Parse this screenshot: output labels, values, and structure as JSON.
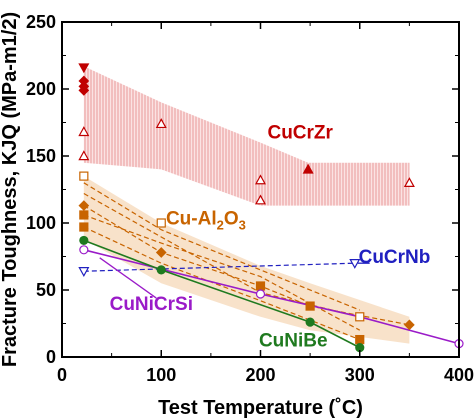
{
  "chart_data": {
    "type": "scatter",
    "xlabel": "Test Temperature (˚C)",
    "ylabel": "Fracture Toughness, KJQ (MPa-m1/2)",
    "xlim": [
      0,
      400
    ],
    "ylim": [
      0,
      250
    ],
    "xticks": [
      "0",
      "100",
      "200",
      "300",
      "400"
    ],
    "yticks": [
      "0",
      "50",
      "100",
      "150",
      "200",
      "250"
    ],
    "grid": false,
    "bands": [
      {
        "series": "CuCrZr",
        "color": "#f2b6b6",
        "pattern": "vertical-hatch",
        "upper": [
          [
            22,
            217
          ],
          [
            100,
            190
          ],
          [
            200,
            160
          ],
          [
            248,
            145
          ],
          [
            350,
            145
          ]
        ],
        "lower": [
          [
            22,
            145
          ],
          [
            100,
            140
          ],
          [
            200,
            113
          ],
          [
            248,
            113
          ],
          [
            350,
            113
          ]
        ]
      },
      {
        "series": "Cu-Al2O3",
        "color": "#f6d8b8",
        "pattern": "solid",
        "upper": [
          [
            22,
            135
          ],
          [
            100,
            100
          ],
          [
            200,
            68
          ],
          [
            250,
            55
          ],
          [
            350,
            30
          ]
        ],
        "lower": [
          [
            22,
            88
          ],
          [
            100,
            55
          ],
          [
            200,
            30
          ],
          [
            250,
            20
          ],
          [
            350,
            10
          ]
        ]
      }
    ],
    "series": [
      {
        "name": "CuCrZr",
        "color": "#c00000",
        "label_pos": [
          240,
          163
        ],
        "points": [
          {
            "x": 22,
            "y": 216,
            "marker": "triangle-down",
            "filled": true
          },
          {
            "x": 22,
            "y": 206,
            "marker": "diamond",
            "filled": true
          },
          {
            "x": 22,
            "y": 202,
            "marker": "diamond",
            "filled": true
          },
          {
            "x": 22,
            "y": 199,
            "marker": "diamond",
            "filled": true
          },
          {
            "x": 22,
            "y": 168,
            "marker": "triangle-up",
            "filled": false
          },
          {
            "x": 22,
            "y": 150,
            "marker": "triangle-up",
            "filled": false
          },
          {
            "x": 100,
            "y": 174,
            "marker": "triangle-up",
            "filled": false
          },
          {
            "x": 200,
            "y": 132,
            "marker": "triangle-up",
            "filled": false
          },
          {
            "x": 200,
            "y": 117,
            "marker": "triangle-up",
            "filled": false
          },
          {
            "x": 248,
            "y": 140,
            "marker": "triangle-up",
            "filled": true
          },
          {
            "x": 350,
            "y": 130,
            "marker": "triangle-up",
            "filled": false
          }
        ]
      },
      {
        "name": "Cu-Al",
        "name_sub": "2",
        "name_tail": "O",
        "name_sub2": "3",
        "color": "#c86400",
        "label_pos": [
          145,
          99
        ],
        "points": [
          {
            "x": 22,
            "y": 135,
            "marker": "square",
            "filled": false
          },
          {
            "x": 22,
            "y": 113,
            "marker": "diamond",
            "filled": true
          },
          {
            "x": 22,
            "y": 106,
            "marker": "square",
            "filled": true
          },
          {
            "x": 22,
            "y": 97,
            "marker": "square",
            "filled": true
          },
          {
            "x": 100,
            "y": 100,
            "marker": "square",
            "filled": false
          },
          {
            "x": 100,
            "y": 78,
            "marker": "diamond",
            "filled": true
          },
          {
            "x": 200,
            "y": 53,
            "marker": "square",
            "filled": true
          },
          {
            "x": 250,
            "y": 38,
            "marker": "square",
            "filled": true
          },
          {
            "x": 300,
            "y": 13,
            "marker": "square",
            "filled": true
          },
          {
            "x": 300,
            "y": 30,
            "marker": "square",
            "filled": false
          },
          {
            "x": 350,
            "y": 24,
            "marker": "diamond",
            "filled": true
          }
        ],
        "trend_lines": [
          [
            [
              22,
              113
            ],
            [
              100,
              78
            ],
            [
              200,
              53
            ],
            [
              250,
              38
            ],
            [
              350,
              24
            ]
          ],
          [
            [
              22,
              106
            ],
            [
              100,
              85
            ],
            [
              200,
              60
            ],
            [
              300,
              20
            ]
          ],
          [
            [
              22,
              97
            ],
            [
              100,
              70
            ],
            [
              200,
              42
            ],
            [
              300,
              13
            ]
          ],
          [
            [
              22,
              130
            ],
            [
              100,
              95
            ],
            [
              200,
              65
            ],
            [
              300,
              35
            ]
          ],
          [
            [
              22,
              122
            ],
            [
              200,
              48
            ],
            [
              300,
              30
            ]
          ]
        ]
      },
      {
        "name": "CuCrNb",
        "color": "#2020c0",
        "label_pos": [
          335,
          70
        ],
        "points": [
          {
            "x": 22,
            "y": 64,
            "marker": "triangle-down",
            "filled": false
          },
          {
            "x": 295,
            "y": 70,
            "marker": "triangle-down",
            "filled": false
          }
        ],
        "trend_lines": [
          [
            [
              22,
              64
            ],
            [
              295,
              70
            ]
          ]
        ]
      },
      {
        "name": "CuNiCrSi",
        "color": "#9a1bc8",
        "label_pos": [
          90,
          35
        ],
        "points": [
          {
            "x": 22,
            "y": 80,
            "marker": "circle",
            "filled": false
          },
          {
            "x": 200,
            "y": 47,
            "marker": "circle",
            "filled": false
          },
          {
            "x": 400,
            "y": 10,
            "marker": "circle",
            "filled": false
          }
        ],
        "trend_lines": [
          [
            [
              22,
              80
            ],
            [
              200,
              47
            ],
            [
              300,
              30
            ],
            [
              400,
              10
            ]
          ]
        ]
      },
      {
        "name": "CuNiBe",
        "color": "#1f7a1f",
        "label_pos": [
          233,
          8
        ],
        "points": [
          {
            "x": 22,
            "y": 87,
            "marker": "circle",
            "filled": true
          },
          {
            "x": 100,
            "y": 65,
            "marker": "circle",
            "filled": true
          },
          {
            "x": 250,
            "y": 26,
            "marker": "circle",
            "filled": true
          },
          {
            "x": 300,
            "y": 7,
            "marker": "circle",
            "filled": true
          }
        ],
        "trend_lines": [
          [
            [
              22,
              87
            ],
            [
              100,
              65
            ],
            [
              250,
              26
            ],
            [
              300,
              7
            ]
          ]
        ]
      }
    ]
  }
}
